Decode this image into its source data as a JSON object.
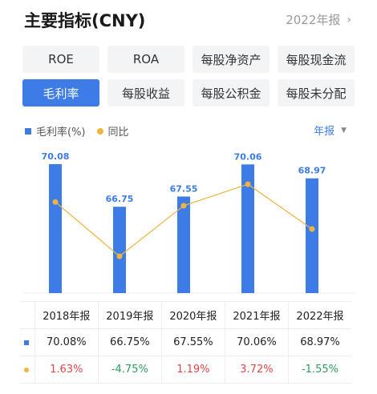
{
  "header": {
    "title": "主要指标(CNY)",
    "period": "2022年报",
    "period_chevron": "›"
  },
  "tabs": [
    {
      "label": "ROE",
      "active": false
    },
    {
      "label": "ROA",
      "active": false
    },
    {
      "label": "每股净资产",
      "active": false
    },
    {
      "label": "每股现金流",
      "active": false
    },
    {
      "label": "毛利率",
      "active": true
    },
    {
      "label": "每股收益",
      "active": false
    },
    {
      "label": "每股公积金",
      "active": false
    },
    {
      "label": "每股未分配",
      "active": false
    }
  ],
  "legend": {
    "bar_label": "毛利率(%)",
    "line_label": "同比",
    "bar_color": "#3d7ce6",
    "line_color": "#f0b43c"
  },
  "period_selector": {
    "label": "年报",
    "icon": "caret-down-icon"
  },
  "chart_data": {
    "type": "bar",
    "categories": [
      "2018年报",
      "2019年报",
      "2020年报",
      "2021年报",
      "2022年报"
    ],
    "series": [
      {
        "name": "毛利率(%)",
        "type": "bar",
        "values": [
          70.08,
          66.75,
          67.55,
          70.06,
          68.97
        ],
        "labels": [
          "70.08",
          "66.75",
          "67.55",
          "70.06",
          "68.97"
        ]
      },
      {
        "name": "同比",
        "type": "line",
        "values": [
          1.63,
          -4.75,
          1.19,
          3.72,
          -1.55
        ]
      }
    ]
  },
  "table": {
    "headers": [
      "2018年报",
      "2019年报",
      "2020年报",
      "2021年报",
      "2022年报"
    ],
    "margin_row": [
      "70.08%",
      "66.75%",
      "67.55%",
      "70.06%",
      "68.97%"
    ],
    "yoy_row": [
      "1.63%",
      "-4.75%",
      "1.19%",
      "3.72%",
      "-1.55%"
    ]
  }
}
